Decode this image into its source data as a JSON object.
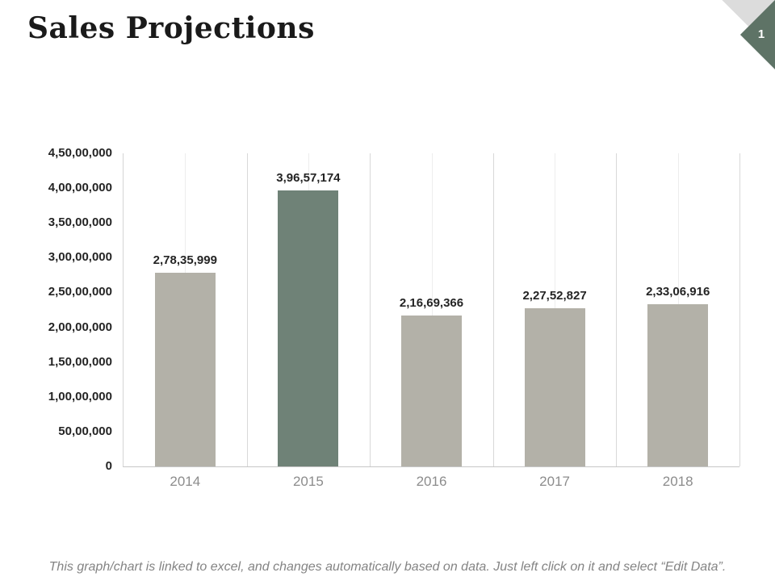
{
  "page": {
    "title": "Sales Projections",
    "slide_number": "1",
    "footer": "This graph/chart is linked to excel, and changes automatically based on data. Just left click on it and select “Edit Data”."
  },
  "colors": {
    "bar_default": "#b3b1a8",
    "bar_highlight": "#6f8277",
    "corner_diamond_green": "#5e7366",
    "corner_diamond_gray": "#dcdcdc",
    "axis_text": "#242424",
    "year_text": "#8c8c8c",
    "footer_text": "#848484"
  },
  "chart_data": {
    "type": "bar",
    "title": "",
    "xlabel": "",
    "ylabel": "",
    "categories": [
      "2014",
      "2015",
      "2016",
      "2017",
      "2018"
    ],
    "values": [
      27835999,
      39657174,
      21669366,
      22752827,
      23306916
    ],
    "value_labels": [
      "2,78,35,999",
      "3,96,57,174",
      "2,16,69,366",
      "2,27,52,827",
      "2,33,06,916"
    ],
    "highlighted_index": 1,
    "ylim": [
      0,
      45000000
    ],
    "ytick_labels": [
      "4,50,00,000",
      "4,00,00,000",
      "3,50,00,000",
      "3,00,00,000",
      "2,50,00,000",
      "2,00,00,000",
      "1,50,00,000",
      "1,00,00,000",
      "50,00,000",
      "0"
    ],
    "grid": "vertical",
    "legend_position": "none"
  }
}
